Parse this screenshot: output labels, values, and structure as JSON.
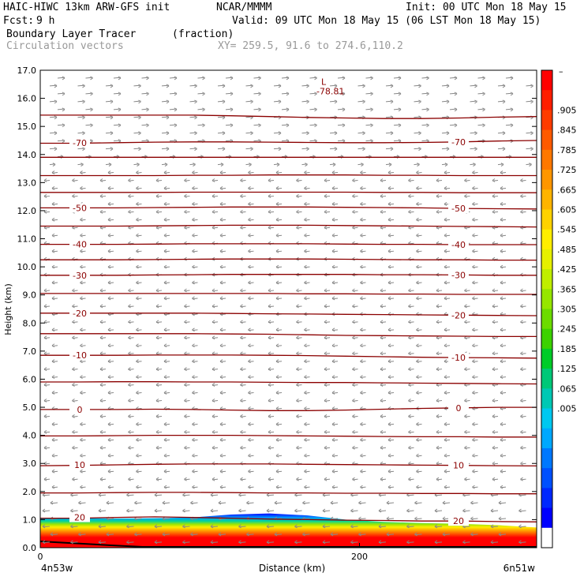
{
  "header": {
    "model": "HAIC-HIWC 13km ARW-GFS init",
    "org": "NCAR/MMMM",
    "init": "Init: 00 UTC Mon 18 May 15",
    "fcst_label": "Fcst:",
    "fcst_value": "9 h",
    "valid": "Valid: 09 UTC Mon 18 May 15 (06 LST Mon 18 May 15)",
    "field1": "Boundary Layer Tracer",
    "field1_units": "(fraction)",
    "field2": "Circulation vectors",
    "xy_range": "XY= 259.5, 91.6 to 274.6,110.2"
  },
  "chart_data": {
    "type": "cross-section",
    "ylabel": "Height (km)",
    "xlabel": "Distance (km)",
    "ylim": [
      0,
      17
    ],
    "xlim": [
      0,
      311
    ],
    "yticks": [
      "0.0",
      "1.0",
      "2.0",
      "3.0",
      "4.0",
      "5.0",
      "6.0",
      "7.0",
      "8.0",
      "9.0",
      "10.0",
      "11.0",
      "12.0",
      "13.0",
      "14.0",
      "15.0",
      "16.0",
      "17.0"
    ],
    "xticks": [
      {
        "value": 0,
        "label": "0"
      },
      {
        "value": 200,
        "label": "200"
      }
    ],
    "x_endpoints": {
      "left": "4n53w",
      "right": "6n51w"
    },
    "min_marker": {
      "label": "L",
      "value": "-78.81",
      "x": 176,
      "y": 16.7
    },
    "isotherms": [
      {
        "value": 20,
        "label": "20",
        "y": [
          1.05,
          1.05,
          1.08,
          1.1,
          1.08,
          1.05,
          1.02,
          1.0,
          0.98,
          0.97,
          0.95,
          0.95,
          0.93,
          0.92
        ]
      },
      {
        "value": 15,
        "label": "",
        "y": [
          1.95,
          1.95,
          1.96,
          1.97,
          1.97,
          1.96,
          1.95,
          1.95,
          1.94,
          1.94,
          1.93,
          1.93,
          1.92,
          1.92
        ]
      },
      {
        "value": 10,
        "label": "10",
        "y": [
          2.92,
          2.93,
          2.95,
          2.97,
          2.98,
          2.98,
          2.98,
          2.97,
          2.96,
          2.95,
          2.94,
          2.93,
          2.92,
          2.91
        ]
      },
      {
        "value": 5,
        "label": "",
        "y": [
          3.98,
          3.98,
          3.99,
          4.0,
          4.0,
          4.0,
          3.99,
          3.98,
          3.97,
          3.96,
          3.95,
          3.95,
          3.94,
          3.94
        ]
      },
      {
        "value": 0,
        "label": "0",
        "y": [
          4.92,
          4.92,
          4.92,
          4.93,
          4.92,
          4.9,
          4.88,
          4.88,
          4.9,
          4.93,
          4.96,
          4.98,
          5.0,
          5.0
        ]
      },
      {
        "value": -5,
        "label": "",
        "y": [
          5.9,
          5.9,
          5.91,
          5.91,
          5.9,
          5.9,
          5.89,
          5.88,
          5.88,
          5.87,
          5.86,
          5.85,
          5.84,
          5.83
        ]
      },
      {
        "value": -10,
        "label": "-10",
        "y": [
          6.85,
          6.85,
          6.85,
          6.86,
          6.86,
          6.86,
          6.85,
          6.84,
          6.82,
          6.8,
          6.78,
          6.77,
          6.76,
          6.75
        ]
      },
      {
        "value": -15,
        "label": "",
        "y": [
          7.62,
          7.62,
          7.62,
          7.62,
          7.62,
          7.61,
          7.6,
          7.58,
          7.56,
          7.55,
          7.54,
          7.53,
          7.52,
          7.52
        ]
      },
      {
        "value": -20,
        "label": "-20",
        "y": [
          8.35,
          8.35,
          8.35,
          8.35,
          8.35,
          8.34,
          8.33,
          8.32,
          8.31,
          8.3,
          8.29,
          8.28,
          8.27,
          8.26
        ]
      },
      {
        "value": -25,
        "label": "",
        "y": [
          9.05,
          9.05,
          9.05,
          9.05,
          9.05,
          9.05,
          9.05,
          9.04,
          9.04,
          9.03,
          9.03,
          9.02,
          9.02,
          9.02
        ]
      },
      {
        "value": -30,
        "label": "-30",
        "y": [
          9.7,
          9.7,
          9.7,
          9.71,
          9.72,
          9.73,
          9.73,
          9.73,
          9.73,
          9.72,
          9.72,
          9.71,
          9.7,
          9.7
        ]
      },
      {
        "value": -35,
        "label": "",
        "y": [
          10.25,
          10.25,
          10.25,
          10.26,
          10.27,
          10.28,
          10.28,
          10.28,
          10.27,
          10.26,
          10.25,
          10.25,
          10.24,
          10.24
        ]
      },
      {
        "value": -40,
        "label": "-40",
        "y": [
          10.8,
          10.8,
          10.8,
          10.81,
          10.82,
          10.82,
          10.82,
          10.82,
          10.81,
          10.8,
          10.8,
          10.79,
          10.79,
          10.79
        ]
      },
      {
        "value": -45,
        "label": "",
        "y": [
          11.45,
          11.45,
          11.45,
          11.46,
          11.47,
          11.48,
          11.48,
          11.48,
          11.47,
          11.46,
          11.45,
          11.44,
          11.43,
          11.42
        ]
      },
      {
        "value": -50,
        "label": "-50",
        "y": [
          12.1,
          12.1,
          12.1,
          12.11,
          12.12,
          12.13,
          12.13,
          12.13,
          12.12,
          12.11,
          12.1,
          12.08,
          12.07,
          12.06
        ]
      },
      {
        "value": -55,
        "label": "",
        "y": [
          12.65,
          12.65,
          12.65,
          12.65,
          12.66,
          12.66,
          12.66,
          12.66,
          12.66,
          12.65,
          12.65,
          12.64,
          12.64,
          12.64
        ]
      },
      {
        "value": -60,
        "label": "",
        "y": [
          13.25,
          13.25,
          13.25,
          13.25,
          13.26,
          13.26,
          13.27,
          13.27,
          13.27,
          13.26,
          13.26,
          13.25,
          13.25,
          13.25
        ]
      },
      {
        "value": -65,
        "label": "",
        "y": [
          13.9,
          13.9,
          13.9,
          13.9,
          13.9,
          13.9,
          13.9,
          13.9,
          13.9,
          13.9,
          13.9,
          13.9,
          13.9,
          13.9
        ]
      },
      {
        "value": -70,
        "label": "-70",
        "y": [
          14.4,
          14.4,
          14.42,
          14.44,
          14.45,
          14.45,
          14.44,
          14.43,
          14.42,
          14.42,
          14.43,
          14.45,
          14.48,
          14.5
        ]
      },
      {
        "value": -75,
        "label": "",
        "y": [
          15.4,
          15.4,
          15.4,
          15.4,
          15.4,
          15.38,
          15.35,
          15.32,
          15.3,
          15.28,
          15.28,
          15.3,
          15.33,
          15.35
        ]
      }
    ],
    "tracer_top_km": [
      1.05,
      1.06,
      1.04,
      1.05,
      1.08,
      1.18,
      1.22,
      1.15,
      1.0,
      0.92,
      0.88,
      0.85,
      0.8,
      0.72
    ],
    "colorbar": {
      "labels": [
        ".905",
        ".845",
        ".785",
        ".725",
        ".665",
        ".605",
        ".545",
        ".485",
        ".425",
        ".365",
        ".305",
        ".245",
        ".185",
        ".125",
        ".065",
        ".005"
      ],
      "top_label": "–",
      "colors": [
        "#ff0000",
        "#ff1e00",
        "#ff3c00",
        "#ff5a00",
        "#ff7800",
        "#ff9600",
        "#ffb400",
        "#ffd200",
        "#ffee00",
        "#e6f000",
        "#c0ee00",
        "#96e600",
        "#6cdc00",
        "#3cd200",
        "#00cc28",
        "#00c878",
        "#00c8b4",
        "#00c8f0",
        "#00a8ff",
        "#0078ff",
        "#0050ff",
        "#0028ff",
        "#0000ff",
        "#ffffff"
      ]
    }
  }
}
